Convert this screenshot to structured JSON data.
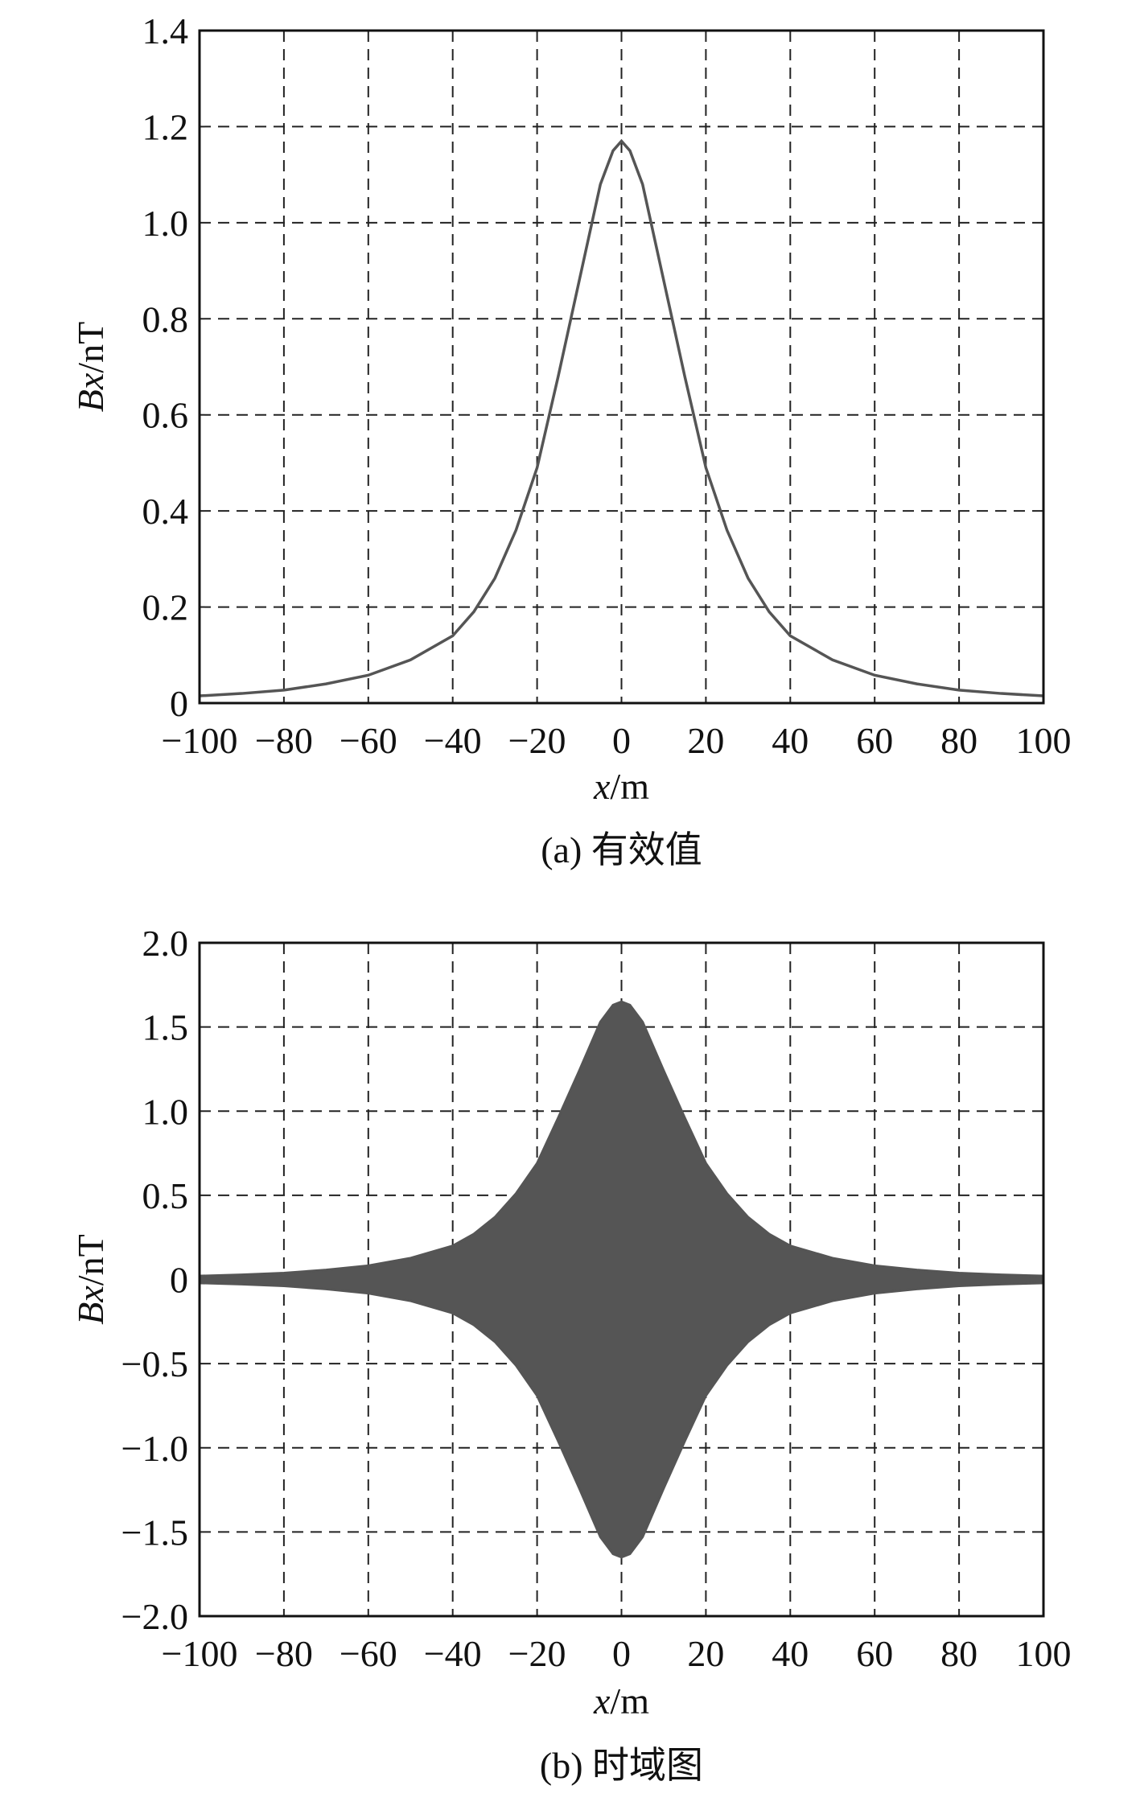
{
  "chart_data": [
    {
      "type": "line",
      "caption": "(a) 有效值",
      "xlabel_var": "x",
      "xlabel_unit": "/m",
      "ylabel_var": "Bx",
      "ylabel_unit": "/nT",
      "xlim": [
        -100,
        100
      ],
      "ylim": [
        0,
        1.4
      ],
      "xticks": [
        -100,
        -80,
        -60,
        -40,
        -20,
        0,
        20,
        40,
        60,
        80,
        100
      ],
      "xtick_labels": [
        "−100",
        "−80",
        "−60",
        "−40",
        "−20",
        "0",
        "20",
        "40",
        "60",
        "80",
        "100"
      ],
      "yticks": [
        0,
        0.2,
        0.4,
        0.6,
        0.8,
        1.0,
        1.2,
        1.4
      ],
      "ytick_labels": [
        "0",
        "0.2",
        "0.4",
        "0.6",
        "0.8",
        "1.0",
        "1.2",
        "1.4"
      ],
      "grid": true,
      "line_color": "#555555",
      "x": [
        -100,
        -90,
        -80,
        -70,
        -60,
        -50,
        -40,
        -35,
        -30,
        -25,
        -20,
        -15,
        -10,
        -5,
        -2,
        0,
        2,
        5,
        10,
        15,
        20,
        25,
        30,
        35,
        40,
        50,
        60,
        70,
        80,
        90,
        100
      ],
      "y": [
        0.015,
        0.02,
        0.027,
        0.04,
        0.058,
        0.09,
        0.14,
        0.19,
        0.26,
        0.36,
        0.49,
        0.68,
        0.88,
        1.08,
        1.15,
        1.17,
        1.15,
        1.08,
        0.88,
        0.68,
        0.49,
        0.36,
        0.26,
        0.19,
        0.14,
        0.09,
        0.058,
        0.04,
        0.027,
        0.02,
        0.015
      ]
    },
    {
      "type": "area",
      "caption": "(b) 时域图",
      "xlabel_var": "x",
      "xlabel_unit": "/m",
      "ylabel_var": "Bx",
      "ylabel_unit": "/nT",
      "xlim": [
        -100,
        100
      ],
      "ylim": [
        -2.0,
        2.0
      ],
      "xticks": [
        -100,
        -80,
        -60,
        -40,
        -20,
        0,
        20,
        40,
        60,
        80,
        100
      ],
      "xtick_labels": [
        "−100",
        "−80",
        "−60",
        "−40",
        "−20",
        "0",
        "20",
        "40",
        "60",
        "80",
        "100"
      ],
      "yticks": [
        -2.0,
        -1.5,
        -1.0,
        -0.5,
        0,
        0.5,
        1.0,
        1.5,
        2.0
      ],
      "ytick_labels": [
        "−2.0",
        "−1.5",
        "−1.0",
        "−0.5",
        "0",
        "0.5",
        "1.0",
        "1.5",
        "2.0"
      ],
      "grid": true,
      "fill_color": "#555555",
      "x": [
        -100,
        -90,
        -80,
        -70,
        -60,
        -50,
        -40,
        -35,
        -30,
        -25,
        -20,
        -15,
        -10,
        -5,
        -2,
        0,
        2,
        5,
        10,
        15,
        20,
        25,
        30,
        35,
        40,
        50,
        60,
        70,
        80,
        90,
        100
      ],
      "envelope": [
        0.021,
        0.028,
        0.038,
        0.057,
        0.082,
        0.127,
        0.2,
        0.27,
        0.37,
        0.51,
        0.69,
        0.96,
        1.24,
        1.53,
        1.63,
        1.65,
        1.63,
        1.53,
        1.24,
        0.96,
        0.69,
        0.51,
        0.37,
        0.27,
        0.2,
        0.127,
        0.082,
        0.057,
        0.038,
        0.028,
        0.021
      ]
    }
  ]
}
